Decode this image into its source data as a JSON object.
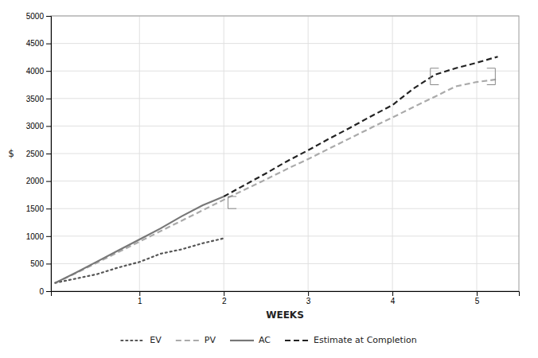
{
  "chart_data": {
    "type": "line",
    "xlabel": "WEEKS",
    "ylabel": "$",
    "xlim": [
      -0.05,
      5.5
    ],
    "ylim": [
      0,
      5000
    ],
    "xticks": [
      1,
      2,
      3,
      4,
      5
    ],
    "yticks": [
      0,
      500,
      1000,
      1500,
      2000,
      2500,
      3000,
      3500,
      4000,
      4500,
      5000
    ],
    "grid": true,
    "legend": "bottom",
    "series": [
      {
        "name": "EV",
        "color": "#555555",
        "line_style": "dotted",
        "x": [
          0,
          0.25,
          0.5,
          0.75,
          1.0,
          1.25,
          1.5,
          1.75,
          2.0
        ],
        "values": [
          150,
          230,
          310,
          430,
          530,
          680,
          760,
          870,
          960
        ]
      },
      {
        "name": "PV",
        "color": "#aaaaaa",
        "line_style": "dashed",
        "x": [
          0,
          0.25,
          0.5,
          0.75,
          1.0,
          1.25,
          1.5,
          1.75,
          2.0,
          2.25,
          2.5,
          2.75,
          3.0,
          3.25,
          3.5,
          3.75,
          4.0,
          4.25,
          4.5,
          4.75,
          5.0,
          5.25
        ],
        "values": [
          150,
          330,
          520,
          710,
          900,
          1090,
          1280,
          1470,
          1660,
          1845,
          2030,
          2220,
          2400,
          2590,
          2780,
          2970,
          3155,
          3345,
          3530,
          3720,
          3800,
          3850
        ]
      },
      {
        "name": "AC",
        "color": "#777777",
        "line_style": "solid",
        "x": [
          0,
          0.25,
          0.5,
          0.75,
          1.0,
          1.25,
          1.5,
          1.75,
          2.0
        ],
        "values": [
          150,
          340,
          540,
          740,
          940,
          1140,
          1360,
          1560,
          1720
        ]
      },
      {
        "name": "Estimate at Completion",
        "color": "#222222",
        "line_style": "dashed",
        "x": [
          2.0,
          2.25,
          2.5,
          2.75,
          3.0,
          3.25,
          3.5,
          3.75,
          4.0,
          4.25,
          4.5,
          4.75,
          5.0,
          5.25
        ],
        "values": [
          1720,
          1930,
          2140,
          2360,
          2560,
          2770,
          2970,
          3180,
          3380,
          3680,
          3930,
          4050,
          4150,
          4260
        ]
      }
    ],
    "brackets": [
      {
        "x_left": 2.05,
        "y_top": 1720,
        "y_bottom": 1500,
        "color": "#888888"
      },
      {
        "x_left": 4.45,
        "x_right": 5.22,
        "y_top": 4050,
        "y_bottom": 3750,
        "color": "#888888"
      }
    ]
  }
}
